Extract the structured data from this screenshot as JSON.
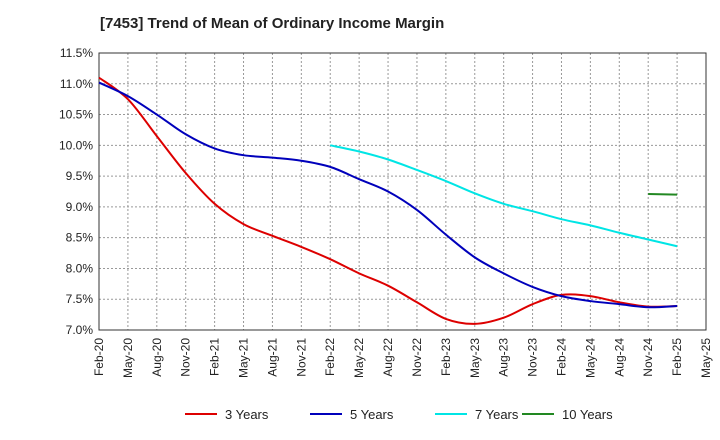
{
  "chart_data": {
    "type": "line",
    "title": "[7453]  Trend of Mean of Ordinary Income Margin",
    "xlabel": "",
    "ylabel": "",
    "x_ticks": [
      "Feb-20",
      "May-20",
      "Aug-20",
      "Nov-20",
      "Feb-21",
      "May-21",
      "Aug-21",
      "Nov-21",
      "Feb-22",
      "May-22",
      "Aug-22",
      "Nov-22",
      "Feb-23",
      "May-23",
      "Aug-23",
      "Nov-23",
      "Feb-24",
      "May-24",
      "Aug-24",
      "Nov-24",
      "Feb-25",
      "May-25"
    ],
    "y_ticks": [
      "7.0%",
      "7.5%",
      "8.0%",
      "8.5%",
      "9.0%",
      "9.5%",
      "10.0%",
      "10.5%",
      "11.0%",
      "11.5%"
    ],
    "ylim": [
      7.0,
      11.5
    ],
    "grid": true,
    "legend_position": "bottom",
    "series": [
      {
        "name": "3 Years",
        "color": "#dd0000",
        "points": [
          [
            "Feb-20",
            11.1
          ],
          [
            "May-20",
            10.75
          ],
          [
            "Aug-20",
            10.15
          ],
          [
            "Nov-20",
            9.55
          ],
          [
            "Feb-21",
            9.05
          ],
          [
            "May-21",
            8.72
          ],
          [
            "Aug-21",
            8.53
          ],
          [
            "Nov-21",
            8.35
          ],
          [
            "Feb-22",
            8.15
          ],
          [
            "May-22",
            7.92
          ],
          [
            "Aug-22",
            7.72
          ],
          [
            "Nov-22",
            7.45
          ],
          [
            "Feb-23",
            7.18
          ],
          [
            "May-23",
            7.1
          ],
          [
            "Aug-23",
            7.2
          ],
          [
            "Nov-23",
            7.42
          ],
          [
            "Feb-24",
            7.57
          ],
          [
            "May-24",
            7.55
          ],
          [
            "Aug-24",
            7.45
          ],
          [
            "Nov-24",
            7.38
          ],
          [
            "Feb-25",
            7.39
          ]
        ]
      },
      {
        "name": "5 Years",
        "color": "#0000bb",
        "points": [
          [
            "Feb-20",
            11.02
          ],
          [
            "May-20",
            10.8
          ],
          [
            "Aug-20",
            10.5
          ],
          [
            "Nov-20",
            10.18
          ],
          [
            "Feb-21",
            9.95
          ],
          [
            "May-21",
            9.84
          ],
          [
            "Aug-21",
            9.8
          ],
          [
            "Nov-21",
            9.75
          ],
          [
            "Feb-22",
            9.65
          ],
          [
            "May-22",
            9.45
          ],
          [
            "Aug-22",
            9.25
          ],
          [
            "Nov-22",
            8.95
          ],
          [
            "Feb-23",
            8.55
          ],
          [
            "May-23",
            8.18
          ],
          [
            "Aug-23",
            7.92
          ],
          [
            "Nov-23",
            7.7
          ],
          [
            "Feb-24",
            7.55
          ],
          [
            "May-24",
            7.47
          ],
          [
            "Aug-24",
            7.42
          ],
          [
            "Nov-24",
            7.37
          ],
          [
            "Feb-25",
            7.39
          ]
        ]
      },
      {
        "name": "7 Years",
        "color": "#00e5e5",
        "points": [
          [
            "Feb-22",
            10.0
          ],
          [
            "May-22",
            9.9
          ],
          [
            "Aug-22",
            9.77
          ],
          [
            "Nov-22",
            9.6
          ],
          [
            "Feb-23",
            9.42
          ],
          [
            "May-23",
            9.22
          ],
          [
            "Aug-23",
            9.05
          ],
          [
            "Nov-23",
            8.93
          ],
          [
            "Feb-24",
            8.8
          ],
          [
            "May-24",
            8.7
          ],
          [
            "Aug-24",
            8.58
          ],
          [
            "Nov-24",
            8.47
          ],
          [
            "Feb-25",
            8.36
          ]
        ]
      },
      {
        "name": "10 Years",
        "color": "#228822",
        "points": [
          [
            "Nov-24",
            9.21
          ],
          [
            "Feb-25",
            9.2
          ]
        ]
      }
    ]
  }
}
